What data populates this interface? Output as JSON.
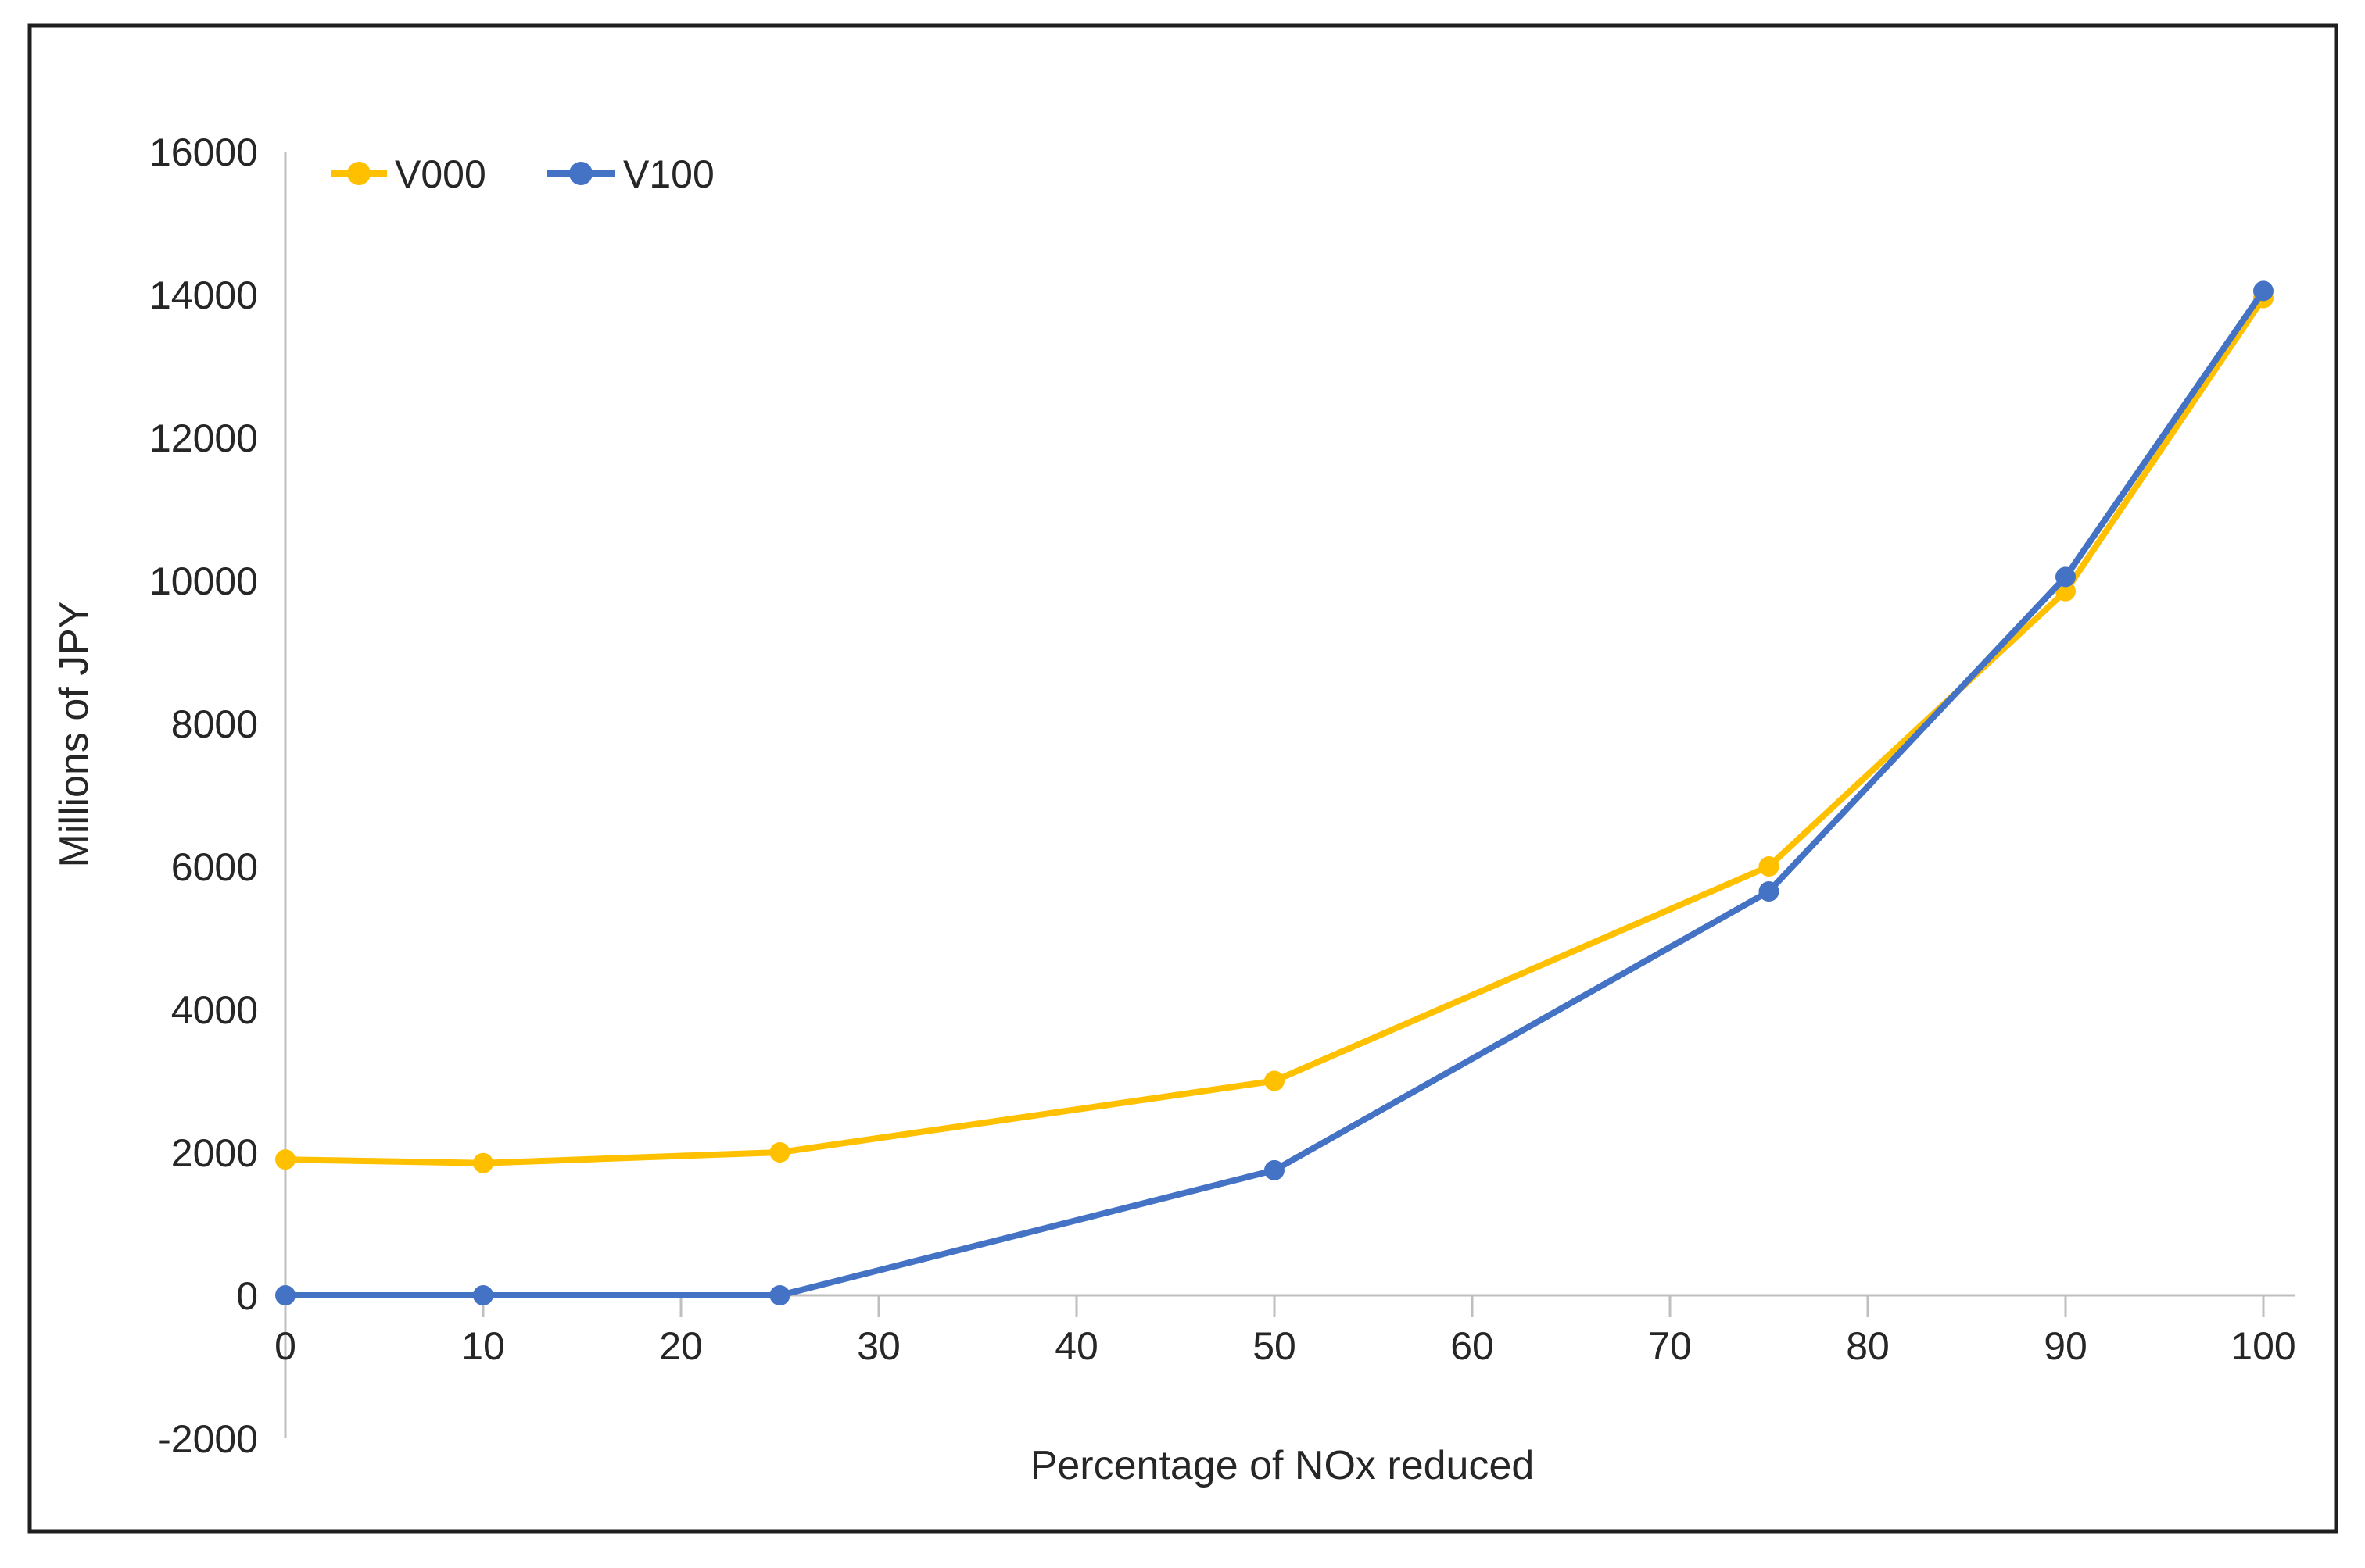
{
  "figure": {
    "background_color": "#ffffff",
    "border_color": "#1f1f1f"
  },
  "chart_data": {
    "type": "line",
    "title": "",
    "xlabel": "Percentage of NOx reduced",
    "ylabel": "Millions of JPY",
    "x": [
      0,
      10,
      25,
      50,
      75,
      90,
      100
    ],
    "series": [
      {
        "name": "V000",
        "color": "#FFC000",
        "values": [
          1900,
          1850,
          2000,
          3000,
          6000,
          9850,
          13950
        ]
      },
      {
        "name": "V100",
        "color": "#4472C4",
        "values": [
          0,
          0,
          0,
          1750,
          5650,
          10050,
          14050
        ]
      }
    ],
    "x_ticks": [
      0,
      10,
      20,
      30,
      40,
      50,
      60,
      70,
      80,
      90,
      100
    ],
    "y_ticks": [
      -2000,
      0,
      2000,
      4000,
      6000,
      8000,
      10000,
      12000,
      14000,
      16000
    ],
    "xlim": [
      0,
      100
    ],
    "ylim": [
      -2000,
      16000
    ],
    "grid": false,
    "legend_position": "top-left",
    "axis_color": "#BFBFBF",
    "text_color": "#262626"
  }
}
